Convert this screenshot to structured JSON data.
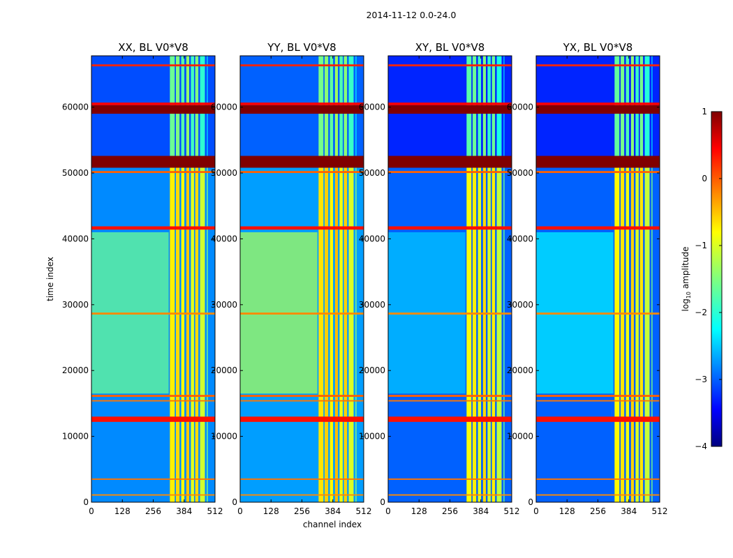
{
  "chart_data": {
    "type": "heatmap",
    "suptitle": "2014-11-12 0.0-24.0",
    "xlabel": "channel index",
    "ylabel": "time index",
    "xlim": [
      0,
      512
    ],
    "ylim": [
      0,
      67800
    ],
    "x_ticks": [
      "0",
      "128",
      "256",
      "384",
      "512"
    ],
    "y_ticks": [
      "0",
      "10000",
      "20000",
      "30000",
      "40000",
      "50000",
      "60000"
    ],
    "x_tick_values": [
      0,
      128,
      256,
      384,
      512
    ],
    "y_tick_values": [
      0,
      10000,
      20000,
      30000,
      40000,
      50000,
      60000
    ],
    "panels": [
      {
        "title": "XX, BL V0*V8",
        "pol": "XX",
        "bg": -2.7,
        "mid_bg": -1.6,
        "vband": -0.7
      },
      {
        "title": "YY, BL V0*V8",
        "pol": "YY",
        "bg": -2.6,
        "mid_bg": -1.3,
        "vband": -0.6
      },
      {
        "title": "XY, BL V0*V8",
        "pol": "XY",
        "bg": -2.9,
        "mid_bg": -2.4,
        "vband": -0.9
      },
      {
        "title": "YX, BL V0*V8",
        "pol": "YX",
        "bg": -2.9,
        "mid_bg": -2.2,
        "vband": -0.8
      }
    ],
    "vertical_bands": [
      {
        "ch_start": 325,
        "ch_end": 345,
        "log_amp": -0.8
      },
      {
        "ch_start": 350,
        "ch_end": 365,
        "log_amp": -0.7
      },
      {
        "ch_start": 372,
        "ch_end": 385,
        "log_amp": -0.9
      },
      {
        "ch_start": 393,
        "ch_end": 405,
        "log_amp": -0.6
      },
      {
        "ch_start": 412,
        "ch_end": 425,
        "log_amp": -1.0
      },
      {
        "ch_start": 430,
        "ch_end": 443,
        "log_amp": -0.7
      },
      {
        "ch_start": 450,
        "ch_end": 470,
        "log_amp": -1.1
      },
      {
        "ch_start": 478,
        "ch_end": 482,
        "log_amp": -1.5
      }
    ],
    "horizontal_bands": [
      {
        "t_start": 59000,
        "t_end": 60300,
        "log_amp": 1.0
      },
      {
        "t_start": 50800,
        "t_end": 52600,
        "log_amp": 1.0
      },
      {
        "t_start": 12200,
        "t_end": 13000,
        "log_amp": 0.3
      },
      {
        "t_start": 41400,
        "t_end": 41900,
        "log_amp": 0.3
      },
      {
        "t_start": 60300,
        "t_end": 60700,
        "log_amp": 0.4
      },
      {
        "t_start": 66200,
        "t_end": 66500,
        "log_amp": 0.2
      },
      {
        "t_start": 16000,
        "t_end": 16300,
        "log_amp": -0.1
      },
      {
        "t_start": 15300,
        "t_end": 15500,
        "log_amp": -0.2
      },
      {
        "t_start": 28500,
        "t_end": 28800,
        "log_amp": -0.3
      },
      {
        "t_start": 3400,
        "t_end": 3600,
        "log_amp": -0.2
      },
      {
        "t_start": 1000,
        "t_end": 1200,
        "log_amp": -0.3
      },
      {
        "t_start": 50000,
        "t_end": 50300,
        "log_amp": -0.1
      }
    ],
    "colorbar": {
      "label": "log",
      "label_sub": "10",
      "label_rest": " amplitude",
      "range": [
        -4,
        1
      ],
      "ticks": [
        "1",
        "0",
        "−1",
        "−2",
        "−3",
        "−4"
      ],
      "tick_values": [
        1,
        0,
        -1,
        -2,
        -3,
        -4
      ]
    }
  }
}
